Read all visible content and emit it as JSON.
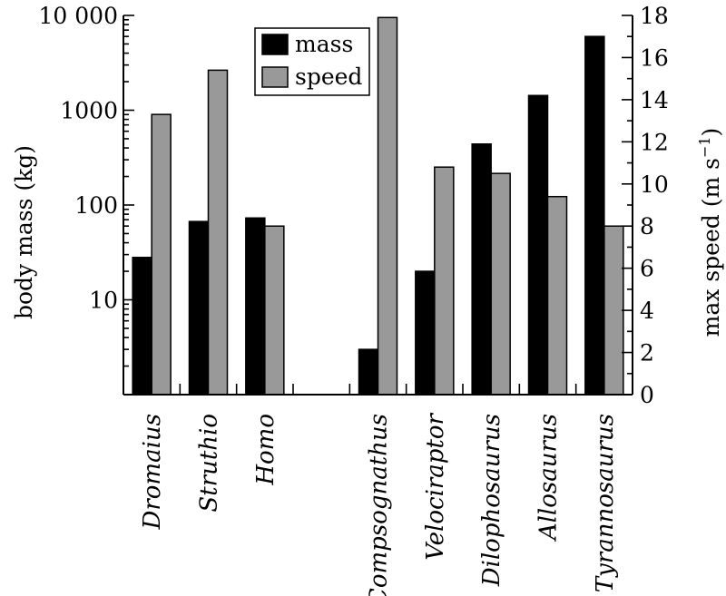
{
  "chart_data": {
    "type": "bar",
    "categories": [
      "Dromaius",
      "Struthio",
      "Homo",
      "",
      "Compsognathus",
      "Velociraptor",
      "Dilophosaurus",
      "Allosaurus",
      "Tyrannosaurus"
    ],
    "series": [
      {
        "name": "mass",
        "axis": "left",
        "color": "#000000",
        "values": [
          28,
          67,
          73,
          null,
          3,
          20,
          440,
          1430,
          6000
        ]
      },
      {
        "name": "speed",
        "axis": "right",
        "color": "#999999",
        "values": [
          13.3,
          15.4,
          8.0,
          null,
          17.9,
          10.8,
          10.5,
          9.4,
          8.0
        ]
      }
    ],
    "left_axis": {
      "label": "body mass (kg)",
      "scale": "log",
      "lim": [
        1,
        10000
      ],
      "ticks": [
        10,
        100,
        1000,
        10000
      ],
      "tick_labels": [
        "10",
        "100",
        "1000",
        "10 000"
      ]
    },
    "right_axis": {
      "label_main": "max speed (m s",
      "label_sup": "−1",
      "label_close": ")",
      "scale": "linear",
      "lim": [
        0,
        18
      ],
      "ticks": [
        0,
        2,
        4,
        6,
        8,
        10,
        12,
        14,
        16,
        18
      ],
      "tick_labels": [
        "0",
        "2",
        "4",
        "6",
        "8",
        "10",
        "12",
        "14",
        "16",
        "18"
      ]
    },
    "legend": {
      "position": "top-center",
      "entries": [
        "mass",
        "speed"
      ]
    },
    "grid": false
  }
}
